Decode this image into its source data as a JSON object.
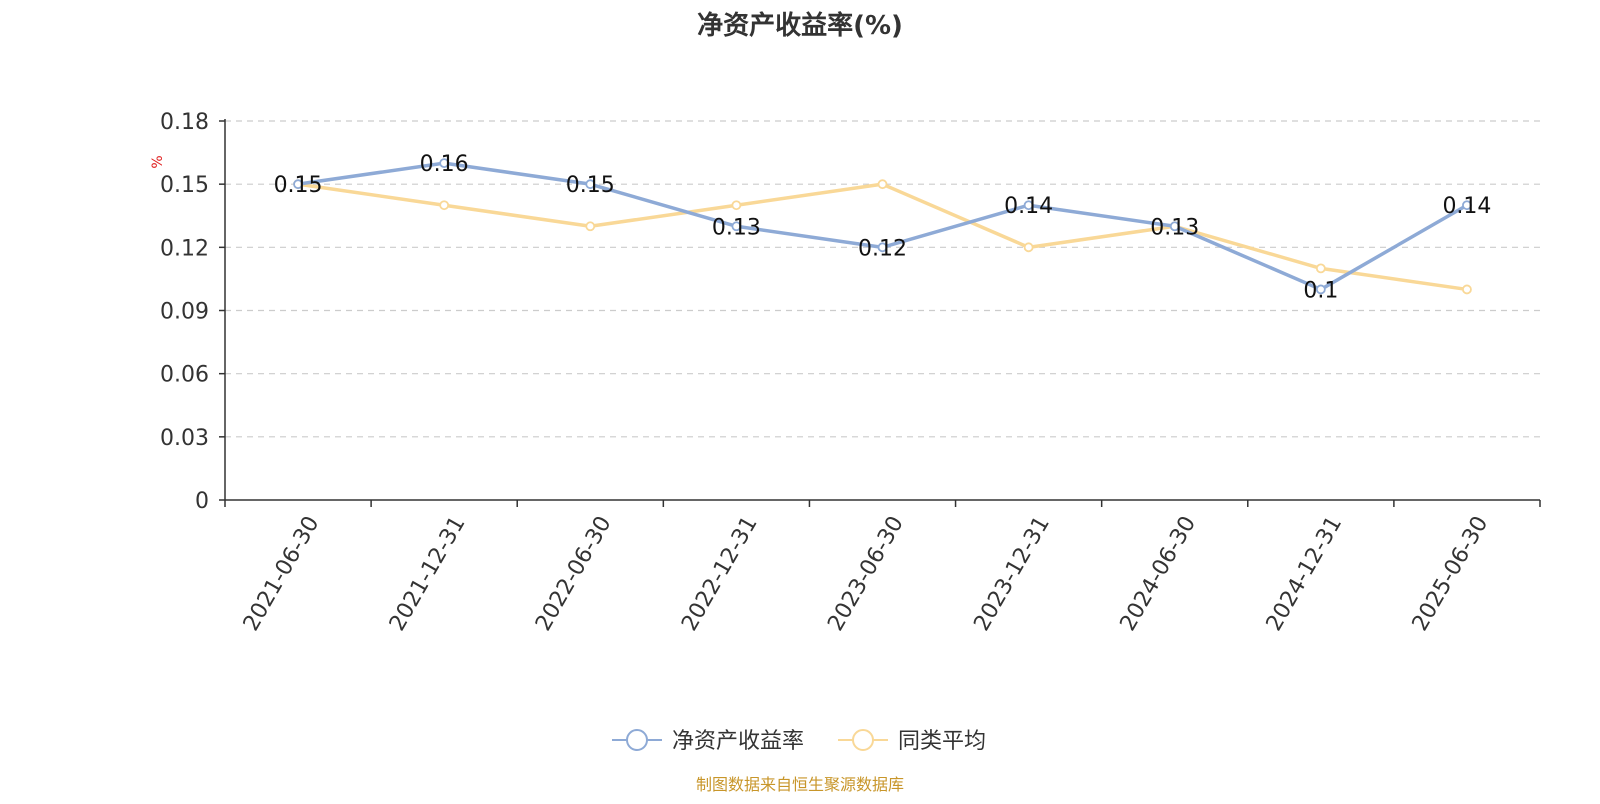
{
  "chart_data": {
    "type": "line",
    "title": "净资产收益率(%)",
    "ylabel": "%",
    "xlabel": "",
    "categories": [
      "2021-06-30",
      "2021-12-31",
      "2022-06-30",
      "2022-12-31",
      "2023-06-30",
      "2023-12-31",
      "2024-06-30",
      "2024-12-31",
      "2025-06-30"
    ],
    "ylim": [
      0,
      0.18
    ],
    "yticks": [
      "0",
      "0.03",
      "0.06",
      "0.09",
      "0.12",
      "0.15",
      "0.18"
    ],
    "grid": true,
    "legend_position": "bottom-center",
    "series": [
      {
        "name": "净资产收益率",
        "color": "#8eaad6",
        "values": [
          0.15,
          0.16,
          0.15,
          0.13,
          0.12,
          0.14,
          0.13,
          0.1,
          0.14
        ],
        "labels": [
          "0.15",
          "0.16",
          "0.15",
          "0.13",
          "0.12",
          "0.14",
          "0.13",
          "0.1",
          "0.14"
        ]
      },
      {
        "name": "同类平均",
        "color": "#f9d897",
        "values": [
          0.15,
          0.14,
          0.13,
          0.14,
          0.15,
          0.12,
          0.13,
          0.11,
          0.1
        ]
      }
    ],
    "source": "制图数据来自恒生聚源数据库",
    "source_color": "#c8962a",
    "ylabel_color": "#e02020"
  }
}
